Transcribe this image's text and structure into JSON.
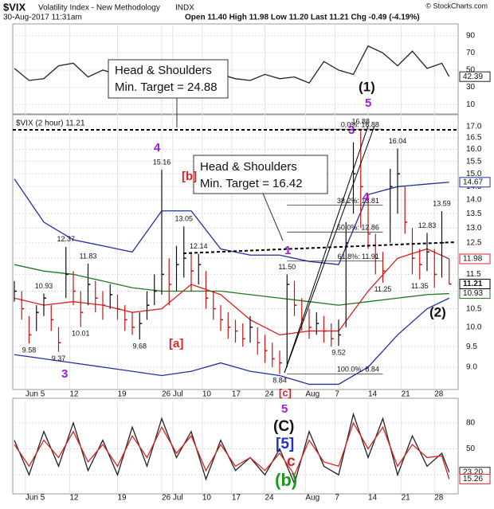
{
  "header": {
    "symbol": "$VIX",
    "name": "Volatility Index - New Methodology",
    "exchange": "INDX",
    "date": "30-Aug-2017 11:31am",
    "quote": "Open 11.40  High 11.98  Low 11.20  Last 11.21  Chg -0.49 (-4.19%)",
    "credit": "© StockCharts.com"
  },
  "annotations": {
    "hs_targets": [
      [
        "Head & Shoulders",
        "Min. Target = 24.88"
      ],
      [
        "Head & Shoulders",
        "Min. Target = 16.42"
      ]
    ],
    "waves": [
      "(1)",
      "5",
      "3",
      "4",
      "4",
      "[b]",
      "[a]",
      "1",
      "(2)",
      "3",
      "[c]",
      "5",
      "(C)",
      "[5]",
      "c",
      "(b)"
    ]
  },
  "chart_data": [
    {
      "type": "line",
      "ylim": [
        0,
        100
      ],
      "yticks": [
        10,
        30,
        50,
        70,
        90
      ],
      "x": [
        0,
        4,
        8,
        12,
        16,
        20,
        24,
        28,
        32,
        36,
        40,
        44,
        48,
        52,
        56,
        60,
        64,
        68,
        72,
        76,
        80,
        84,
        88,
        92,
        96,
        100,
        104,
        108,
        112,
        116,
        118
      ],
      "series": [
        {
          "color": "#222222",
          "label_last": true,
          "values": [
            52,
            38,
            40,
            55,
            58,
            42,
            50,
            45,
            40,
            48,
            62,
            55,
            58,
            50,
            45,
            40,
            38,
            45,
            40,
            42,
            35,
            60,
            50,
            45,
            78,
            70,
            55,
            72,
            52,
            58,
            42.39
          ]
        }
      ]
    },
    {
      "type": "hlc",
      "title": "$VIX (2 hour) 11.21",
      "log": true,
      "ylim": [
        8.5,
        17.5
      ],
      "xlim": [
        0,
        120
      ],
      "yticks": [
        {
          "value": 9,
          "label": "9.0"
        },
        {
          "value": 9.5,
          "label": "9.5"
        },
        {
          "value": 10,
          "label": "10.0"
        },
        {
          "value": 10.5,
          "label": "10.5"
        },
        {
          "value": 11,
          "label": "11.0"
        },
        {
          "value": 11.5,
          "label": "11.5"
        },
        {
          "value": 12,
          "label": "12.0"
        },
        {
          "value": 12.5,
          "label": "12.5"
        },
        {
          "value": 13,
          "label": "13.0"
        },
        {
          "value": 13.5,
          "label": "13.5"
        },
        {
          "value": 14,
          "label": "14.0"
        },
        {
          "value": 14.5,
          "label": "14.5"
        },
        {
          "value": 15,
          "label": "15.0"
        },
        {
          "value": 15.5,
          "label": "15.5"
        },
        {
          "value": 16,
          "label": "16.0"
        },
        {
          "value": 16.5,
          "label": "16.5"
        },
        {
          "value": 17,
          "label": "17.0"
        }
      ],
      "xticks": [
        {
          "value": 3,
          "label": "Jun 5"
        },
        {
          "value": 15,
          "label": "12"
        },
        {
          "value": 28,
          "label": "19"
        },
        {
          "value": 40,
          "label": "26"
        },
        {
          "value": 43,
          "label": "Jul"
        },
        {
          "value": 51,
          "label": "10"
        },
        {
          "value": 59,
          "label": "17"
        },
        {
          "value": 68,
          "label": "24"
        },
        {
          "value": 79,
          "label": "Aug"
        },
        {
          "value": 87,
          "label": "7"
        },
        {
          "value": 96,
          "label": "14"
        },
        {
          "value": 105,
          "label": "21"
        },
        {
          "value": 114,
          "label": "28"
        }
      ],
      "x": [
        0,
        2,
        4,
        6,
        8,
        10,
        12,
        14,
        16,
        18,
        20,
        22,
        24,
        26,
        28,
        30,
        32,
        34,
        36,
        38,
        40,
        42,
        44,
        46,
        48,
        50,
        52,
        54,
        56,
        58,
        60,
        62,
        64,
        66,
        68,
        70,
        72,
        74,
        76,
        78,
        80,
        82,
        84,
        86,
        88,
        90,
        92,
        94,
        96,
        98,
        100,
        102,
        104,
        106,
        108,
        110,
        112,
        114,
        116,
        118
      ],
      "close": [
        11.0,
        10.5,
        9.8,
        10.4,
        10.8,
        10.2,
        9.6,
        11.5,
        11.0,
        10.4,
        11.2,
        10.8,
        10.6,
        10.9,
        10.5,
        10.2,
        10.0,
        10.1,
        10.6,
        11.0,
        11.5,
        11.2,
        11.8,
        12.0,
        11.6,
        11.8,
        10.8,
        10.5,
        10.2,
        10.0,
        9.9,
        9.7,
        10.0,
        9.6,
        9.4,
        9.2,
        9.1,
        11.2,
        10.6,
        10.2,
        10.0,
        10.1,
        9.9,
        9.7,
        9.8,
        12.5,
        15.0,
        14.5,
        12.8,
        12.0,
        11.6,
        14.5,
        15.0,
        13.2,
        12.0,
        11.8,
        12.2,
        11.5,
        12.5,
        11.21
      ],
      "high": [
        11.3,
        11.0,
        10.3,
        10.6,
        10.93,
        10.6,
        10.0,
        12.37,
        11.6,
        11.0,
        11.83,
        11.3,
        11.0,
        11.2,
        10.9,
        10.6,
        10.4,
        10.4,
        11.0,
        11.5,
        15.16,
        12.0,
        12.4,
        13.05,
        12.2,
        12.14,
        11.6,
        11.0,
        10.6,
        10.4,
        10.2,
        10.1,
        10.3,
        10.0,
        9.8,
        9.6,
        9.4,
        11.5,
        11.3,
        10.8,
        10.5,
        10.4,
        10.3,
        10.1,
        10.2,
        13.2,
        16.3,
        16.88,
        14.2,
        12.8,
        12.2,
        15.2,
        16.04,
        14.5,
        13.0,
        12.3,
        12.83,
        12.3,
        13.59,
        11.98
      ],
      "low": [
        10.7,
        10.2,
        9.58,
        9.9,
        10.3,
        9.9,
        9.37,
        10.8,
        10.6,
        10.01,
        10.6,
        10.4,
        10.2,
        10.5,
        10.2,
        9.9,
        9.8,
        9.68,
        10.2,
        10.6,
        10.9,
        10.6,
        11.0,
        11.4,
        11.0,
        11.2,
        10.5,
        10.2,
        9.9,
        9.7,
        9.6,
        9.5,
        9.6,
        9.3,
        9.1,
        9.0,
        8.84,
        9.0,
        10.3,
        9.9,
        9.7,
        9.8,
        9.6,
        9.5,
        9.52,
        10.0,
        13.5,
        13.0,
        12.3,
        11.5,
        11.25,
        12.5,
        13.5,
        12.8,
        11.5,
        11.35,
        11.6,
        11.1,
        11.4,
        11.2
      ],
      "point_labels": [
        {
          "x": 4,
          "value": 9.58,
          "label": "9.58"
        },
        {
          "x": 8,
          "value": 10.93,
          "label": "10.93"
        },
        {
          "x": 12,
          "value": 9.37,
          "label": "9.37"
        },
        {
          "x": 14,
          "value": 12.37,
          "label": "12.37"
        },
        {
          "x": 18,
          "value": 10.01,
          "label": "10.01"
        },
        {
          "x": 20,
          "value": 11.83,
          "label": "11.83"
        },
        {
          "x": 34,
          "value": 9.68,
          "label": "9.68"
        },
        {
          "x": 40,
          "value": 15.16,
          "label": "15.16"
        },
        {
          "x": 46,
          "value": 13.05,
          "label": "13.05"
        },
        {
          "x": 50,
          "value": 12.14,
          "label": "12.14"
        },
        {
          "x": 72,
          "value": 8.84,
          "label": "8.84"
        },
        {
          "x": 74,
          "value": 11.5,
          "label": "11.50"
        },
        {
          "x": 88,
          "value": 9.52,
          "label": "9.52"
        },
        {
          "x": 94,
          "value": 16.88,
          "label": "16.88"
        },
        {
          "x": 100,
          "value": 11.25,
          "label": "11.25"
        },
        {
          "x": 104,
          "value": 16.04,
          "label": "16.04"
        },
        {
          "x": 110,
          "value": 11.35,
          "label": "11.35"
        },
        {
          "x": 112,
          "value": 12.83,
          "label": "12.83"
        },
        {
          "x": 116,
          "value": 13.59,
          "label": "13.59"
        }
      ],
      "fib_levels": [
        {
          "value": 16.88,
          "label": "0.0%: 16.88"
        },
        {
          "value": 13.81,
          "label": "38.2%: 13.81"
        },
        {
          "value": 12.86,
          "label": "50.0%: 12.86"
        },
        {
          "value": 11.91,
          "label": "61.8%: 11.91"
        },
        {
          "value": 8.84,
          "label": "100.0%: 8.84"
        }
      ],
      "overlays": {
        "x": [
          0,
          8,
          16,
          24,
          32,
          40,
          48,
          56,
          64,
          72,
          80,
          88,
          96,
          104,
          112,
          118
        ],
        "series": [
          {
            "color": "#1f2fa0",
            "label_last": true,
            "values": [
              14.8,
              13.2,
              12.6,
              12.4,
              12.2,
              13.6,
              13.6,
              12.3,
              12.1,
              12.1,
              11.9,
              11.8,
              14.2,
              14.5,
              14.6,
              14.67
            ]
          },
          {
            "color": "#1f2fa0",
            "values": [
              9.3,
              9.2,
              9.1,
              9.0,
              8.9,
              8.8,
              8.9,
              9.1,
              8.9,
              8.8,
              8.6,
              8.6,
              9.0,
              9.8,
              10.5,
              10.8
            ]
          },
          {
            "color": "#e02020",
            "label_last": true,
            "values": [
              10.8,
              10.6,
              10.7,
              10.6,
              10.4,
              10.5,
              11.2,
              10.9,
              10.2,
              9.8,
              9.9,
              9.9,
              11.0,
              12.0,
              12.3,
              11.98
            ]
          },
          {
            "color": "#1a7a1a",
            "label_last": true,
            "values": [
              11.8,
              11.6,
              11.5,
              11.3,
              11.1,
              11.0,
              11.0,
              11.0,
              10.9,
              10.8,
              10.7,
              10.6,
              10.7,
              10.8,
              10.9,
              10.93
            ]
          }
        ]
      }
    },
    {
      "type": "line",
      "ylim": [
        0,
        100
      ],
      "yticks": [
        20,
        50,
        80
      ],
      "xlim": [
        0,
        120
      ],
      "xticks": [
        {
          "value": 3,
          "label": "Jun 5"
        },
        {
          "value": 15,
          "label": "12"
        },
        {
          "value": 28,
          "label": "19"
        },
        {
          "value": 40,
          "label": "26"
        },
        {
          "value": 43,
          "label": "Jul"
        },
        {
          "value": 51,
          "label": "10"
        },
        {
          "value": 59,
          "label": "17"
        },
        {
          "value": 68,
          "label": "24"
        },
        {
          "value": 79,
          "label": "Aug"
        },
        {
          "value": 87,
          "label": "7"
        },
        {
          "value": 96,
          "label": "14"
        },
        {
          "value": 105,
          "label": "21"
        },
        {
          "value": 114,
          "label": "28"
        }
      ],
      "x": [
        0,
        4,
        8,
        12,
        16,
        20,
        24,
        28,
        32,
        36,
        40,
        44,
        48,
        52,
        56,
        60,
        64,
        68,
        72,
        76,
        80,
        84,
        88,
        92,
        96,
        100,
        104,
        108,
        112,
        116,
        118
      ],
      "series": [
        {
          "color": "#222222",
          "label_last": true,
          "values": [
            60,
            20,
            70,
            30,
            80,
            25,
            60,
            20,
            75,
            30,
            85,
            40,
            70,
            15,
            60,
            25,
            40,
            20,
            50,
            10,
            70,
            30,
            20,
            90,
            40,
            85,
            20,
            65,
            30,
            45,
            23.2
          ],
          "value_labels": [
            null,
            null,
            null,
            null,
            null,
            null,
            null,
            null,
            null,
            null,
            null,
            null,
            null,
            null,
            null,
            null,
            null,
            null,
            null,
            null,
            null,
            null,
            null,
            null,
            null,
            null,
            null,
            null,
            null,
            null,
            "23.20"
          ]
        },
        {
          "color": "#e02020",
          "label_last": true,
          "values": [
            55,
            30,
            60,
            40,
            70,
            35,
            55,
            30,
            65,
            40,
            75,
            45,
            65,
            25,
            55,
            30,
            40,
            25,
            45,
            20,
            60,
            35,
            30,
            80,
            50,
            75,
            30,
            55,
            40,
            42,
            15.26
          ]
        }
      ]
    }
  ]
}
